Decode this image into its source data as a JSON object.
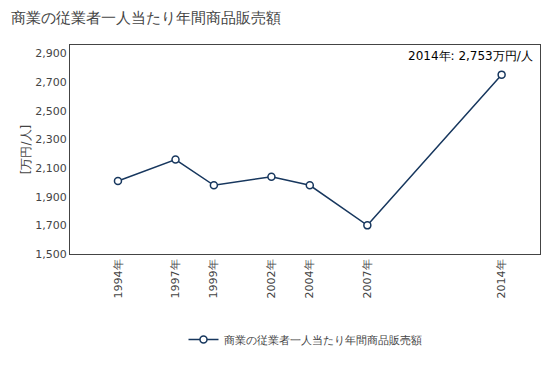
{
  "chart_data": {
    "type": "line",
    "title": "商業の従業者一人当たり年間商品販売額",
    "y_label": "[万円/人]",
    "annotation": "2014年: 2,753万円/人",
    "x": [
      1994,
      1997,
      1999,
      2002,
      2004,
      2007,
      2014
    ],
    "series": [
      {
        "name": "商業の従業者一人当たり年間商品販売額",
        "color": "#17375e",
        "marker": "circle",
        "values": [
          2010,
          2160,
          1980,
          2040,
          1980,
          1700,
          2753
        ]
      }
    ],
    "xlim": [
      1991.5,
      2016
    ],
    "xticks": [
      {
        "value": 1994,
        "label": "1994年"
      },
      {
        "value": 1997,
        "label": "1997年"
      },
      {
        "value": 1999,
        "label": "1999年"
      },
      {
        "value": 2002,
        "label": "2002年"
      },
      {
        "value": 2004,
        "label": "2004年"
      },
      {
        "value": 2007,
        "label": "2007年"
      },
      {
        "value": 2014,
        "label": "2014年"
      }
    ],
    "ylim": [
      1500,
      2960
    ],
    "yticks": [
      {
        "value": 1500,
        "label": "1,500"
      },
      {
        "value": 1700,
        "label": "1,700"
      },
      {
        "value": 1900,
        "label": "1,900"
      },
      {
        "value": 2100,
        "label": "2,100"
      },
      {
        "value": 2300,
        "label": "2,300"
      },
      {
        "value": 2500,
        "label": "2,500"
      },
      {
        "value": 2700,
        "label": "2,700"
      },
      {
        "value": 2900,
        "label": "2,900"
      }
    ],
    "grid": false,
    "legend": "bottom"
  }
}
